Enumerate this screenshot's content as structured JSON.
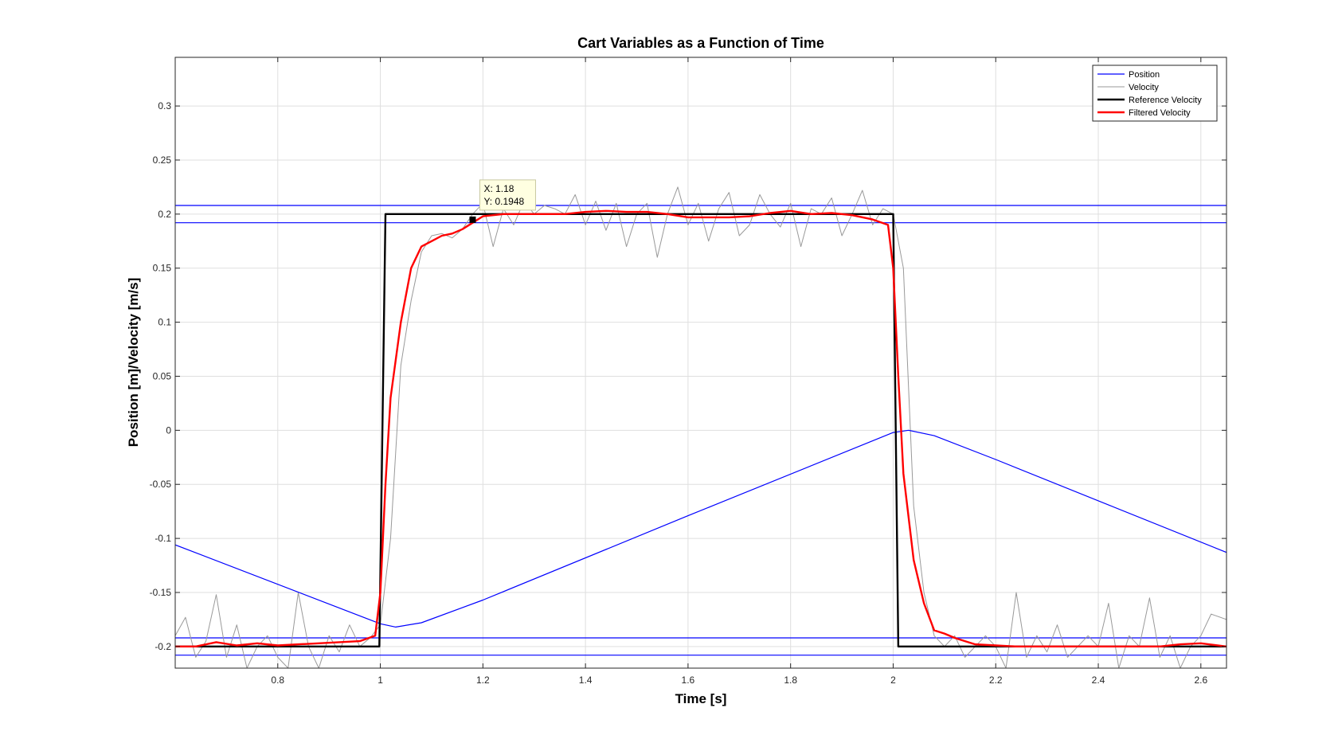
{
  "chart_data": {
    "type": "line",
    "title": "Cart Variables as a Function of Time",
    "xlabel": "Time [s]",
    "ylabel": "Position [m]/Velocity [m/s]",
    "xlim": [
      0.6,
      2.65
    ],
    "ylim": [
      -0.22,
      0.345
    ],
    "x_ticks": [
      0.8,
      1,
      1.2,
      1.4,
      1.6,
      1.8,
      2,
      2.2,
      2.4,
      2.6
    ],
    "x_tick_labels": [
      "0.8",
      "1",
      "1.2",
      "1.4",
      "1.6",
      "1.8",
      "2",
      "2.2",
      "2.4",
      "2.6"
    ],
    "y_ticks": [
      0.3,
      0.25,
      0.2,
      0.15,
      0.1,
      0.05,
      0,
      -0.05,
      -0.1,
      -0.15,
      -0.2
    ],
    "y_tick_labels": [
      "0.3",
      "0.25",
      "0.2",
      "0.15",
      "0.1",
      "0.05",
      "0",
      "-0.05",
      "-0.1",
      "-0.15",
      "-0.2"
    ],
    "grid": true,
    "legend_position": "top-right",
    "series": [
      {
        "name": "Position",
        "color": "#0000ff",
        "width": 1.2,
        "x": [
          0.6,
          1.0,
          1.03,
          1.08,
          1.2,
          1.6,
          2.0,
          2.03,
          2.08,
          2.2,
          2.65
        ],
        "y": [
          -0.106,
          -0.179,
          -0.182,
          -0.178,
          -0.157,
          -0.079,
          -0.002,
          0.0,
          -0.005,
          -0.027,
          -0.113
        ]
      },
      {
        "name": "Velocity",
        "color": "#999999",
        "width": 1.0,
        "x": [
          0.6,
          0.62,
          0.64,
          0.66,
          0.68,
          0.7,
          0.72,
          0.74,
          0.76,
          0.78,
          0.8,
          0.82,
          0.84,
          0.86,
          0.88,
          0.9,
          0.92,
          0.94,
          0.96,
          0.98,
          1.0,
          1.02,
          1.04,
          1.06,
          1.08,
          1.1,
          1.12,
          1.14,
          1.16,
          1.18,
          1.2,
          1.22,
          1.24,
          1.26,
          1.28,
          1.3,
          1.32,
          1.34,
          1.36,
          1.38,
          1.4,
          1.42,
          1.44,
          1.46,
          1.48,
          1.5,
          1.52,
          1.54,
          1.56,
          1.58,
          1.6,
          1.62,
          1.64,
          1.66,
          1.68,
          1.7,
          1.72,
          1.74,
          1.76,
          1.78,
          1.8,
          1.82,
          1.84,
          1.86,
          1.88,
          1.9,
          1.92,
          1.94,
          1.96,
          1.98,
          2.0,
          2.02,
          2.04,
          2.06,
          2.08,
          2.1,
          2.12,
          2.14,
          2.16,
          2.18,
          2.2,
          2.22,
          2.24,
          2.26,
          2.28,
          2.3,
          2.32,
          2.34,
          2.36,
          2.38,
          2.4,
          2.42,
          2.44,
          2.46,
          2.48,
          2.5,
          2.52,
          2.54,
          2.56,
          2.58,
          2.6,
          2.62,
          2.65
        ],
        "y": [
          -0.19,
          -0.173,
          -0.21,
          -0.195,
          -0.152,
          -0.21,
          -0.18,
          -0.22,
          -0.2,
          -0.19,
          -0.21,
          -0.22,
          -0.15,
          -0.2,
          -0.22,
          -0.19,
          -0.205,
          -0.18,
          -0.2,
          -0.192,
          -0.18,
          -0.1,
          0.06,
          0.12,
          0.165,
          0.18,
          0.182,
          0.178,
          0.186,
          0.2,
          0.21,
          0.17,
          0.205,
          0.19,
          0.212,
          0.2,
          0.208,
          0.205,
          0.2,
          0.218,
          0.19,
          0.212,
          0.185,
          0.21,
          0.17,
          0.2,
          0.21,
          0.16,
          0.2,
          0.225,
          0.19,
          0.21,
          0.175,
          0.205,
          0.22,
          0.18,
          0.19,
          0.218,
          0.2,
          0.188,
          0.21,
          0.17,
          0.205,
          0.2,
          0.215,
          0.18,
          0.2,
          0.222,
          0.19,
          0.205,
          0.2,
          0.15,
          -0.07,
          -0.15,
          -0.19,
          -0.2,
          -0.19,
          -0.21,
          -0.2,
          -0.19,
          -0.2,
          -0.22,
          -0.15,
          -0.21,
          -0.19,
          -0.205,
          -0.18,
          -0.21,
          -0.2,
          -0.19,
          -0.2,
          -0.16,
          -0.22,
          -0.19,
          -0.2,
          -0.155,
          -0.21,
          -0.19,
          -0.22,
          -0.2,
          -0.19,
          -0.17,
          -0.175
        ]
      },
      {
        "name": "Reference Velocity",
        "color": "#000000",
        "width": 2.4,
        "x": [
          0.6,
          0.998,
          1.01,
          2.0,
          2.01,
          2.65
        ],
        "y": [
          -0.2,
          -0.2,
          0.2,
          0.2,
          -0.2,
          -0.2
        ]
      },
      {
        "name": "Filtered Velocity",
        "color": "#ff0000",
        "width": 2.4,
        "x": [
          0.6,
          0.64,
          0.68,
          0.72,
          0.76,
          0.8,
          0.84,
          0.88,
          0.92,
          0.96,
          0.99,
          1.0,
          1.01,
          1.02,
          1.04,
          1.06,
          1.08,
          1.1,
          1.12,
          1.14,
          1.16,
          1.18,
          1.2,
          1.24,
          1.28,
          1.32,
          1.36,
          1.4,
          1.44,
          1.48,
          1.52,
          1.56,
          1.6,
          1.64,
          1.68,
          1.72,
          1.76,
          1.8,
          1.84,
          1.88,
          1.92,
          1.96,
          1.99,
          2.0,
          2.01,
          2.02,
          2.04,
          2.06,
          2.08,
          2.1,
          2.12,
          2.14,
          2.16,
          2.2,
          2.24,
          2.28,
          2.32,
          2.36,
          2.4,
          2.44,
          2.48,
          2.52,
          2.56,
          2.6,
          2.65
        ],
        "y": [
          -0.2,
          -0.2,
          -0.196,
          -0.199,
          -0.197,
          -0.199,
          -0.198,
          -0.197,
          -0.196,
          -0.195,
          -0.19,
          -0.15,
          -0.05,
          0.03,
          0.1,
          0.15,
          0.17,
          0.175,
          0.18,
          0.182,
          0.186,
          0.192,
          0.198,
          0.2,
          0.2,
          0.2,
          0.2,
          0.202,
          0.203,
          0.202,
          0.202,
          0.2,
          0.197,
          0.197,
          0.197,
          0.198,
          0.201,
          0.203,
          0.2,
          0.201,
          0.199,
          0.195,
          0.19,
          0.15,
          0.05,
          -0.04,
          -0.12,
          -0.16,
          -0.185,
          -0.188,
          -0.192,
          -0.195,
          -0.198,
          -0.199,
          -0.2,
          -0.2,
          -0.2,
          -0.2,
          -0.2,
          -0.2,
          -0.2,
          -0.2,
          -0.198,
          -0.197,
          -0.2
        ]
      }
    ],
    "reference_lines": {
      "color": "#0000ff",
      "y": [
        0.208,
        0.192,
        -0.192,
        -0.208
      ]
    },
    "datatip": {
      "x": 1.18,
      "y": 0.1948,
      "line1": "X: 1.18",
      "line2": "Y: 0.1948"
    }
  }
}
